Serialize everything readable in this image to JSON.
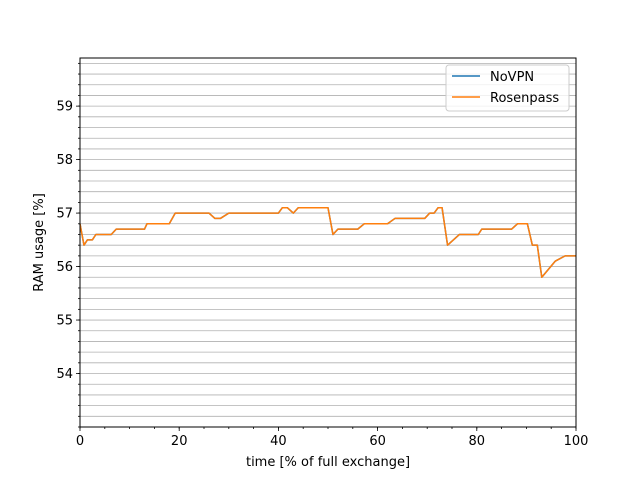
{
  "chart_data": {
    "type": "line",
    "xlabel": "time [% of full exchange]",
    "ylabel": "RAM usage [%]",
    "xlim": [
      0,
      100
    ],
    "ylim": [
      53.0,
      59.9
    ],
    "xticks": [
      0,
      20,
      40,
      60,
      80,
      100
    ],
    "xtick_labels": [
      "0",
      "20",
      "40",
      "60",
      "80",
      "100"
    ],
    "yticks": [
      54,
      55,
      56,
      57,
      58,
      59
    ],
    "ytick_labels": [
      "54",
      "55",
      "56",
      "57",
      "58",
      "59"
    ],
    "grid": "horizontal minor gridlines every 0.2",
    "legend_placement": "top-right",
    "series": [
      {
        "name": "NoVPN",
        "color": "#1f77b4",
        "x": [
          0,
          0.8,
          1.5,
          2.5,
          3.2,
          6.3,
          7.3,
          13,
          13.5,
          18,
          19.2,
          26,
          27.2,
          28.3,
          30,
          40,
          40.8,
          41.8,
          43,
          44,
          50,
          51,
          52,
          56,
          57.3,
          62,
          63.5,
          69.5,
          70.5,
          71.4,
          72.2,
          73,
          74.1,
          76.5,
          80.3,
          81,
          87,
          88.2,
          90.2,
          91.2,
          92.2,
          93.1,
          95.8,
          97.8,
          100
        ],
        "y": [
          56.8,
          56.4,
          56.5,
          56.5,
          56.6,
          56.6,
          56.7,
          56.7,
          56.8,
          56.8,
          57.0,
          57.0,
          56.9,
          56.9,
          57.0,
          57.0,
          57.1,
          57.1,
          57.0,
          57.1,
          57.1,
          56.6,
          56.7,
          56.7,
          56.8,
          56.8,
          56.9,
          56.9,
          57.0,
          57.0,
          57.1,
          57.1,
          56.4,
          56.6,
          56.6,
          56.7,
          56.7,
          56.8,
          56.8,
          56.4,
          56.4,
          55.8,
          56.1,
          56.2,
          56.2
        ]
      },
      {
        "name": "Rosenpass",
        "color": "#ff7f0e",
        "x": [
          0,
          0.8,
          1.5,
          2.5,
          3.2,
          6.3,
          7.3,
          13,
          13.5,
          18,
          19.2,
          26,
          27.2,
          28.3,
          30,
          40,
          40.8,
          41.8,
          43,
          44,
          50,
          51,
          52,
          56,
          57.3,
          62,
          63.5,
          69.5,
          70.5,
          71.4,
          72.2,
          73,
          74.1,
          76.5,
          80.3,
          81,
          87,
          88.2,
          90.2,
          91.2,
          92.2,
          93.1,
          95.8,
          97.8,
          100
        ],
        "y": [
          56.8,
          56.4,
          56.5,
          56.5,
          56.6,
          56.6,
          56.7,
          56.7,
          56.8,
          56.8,
          57.0,
          57.0,
          56.9,
          56.9,
          57.0,
          57.0,
          57.1,
          57.1,
          57.0,
          57.1,
          57.1,
          56.6,
          56.7,
          56.7,
          56.8,
          56.8,
          56.9,
          56.9,
          57.0,
          57.0,
          57.1,
          57.1,
          56.4,
          56.6,
          56.6,
          56.7,
          56.7,
          56.8,
          56.8,
          56.4,
          56.4,
          55.8,
          56.1,
          56.2,
          56.2
        ]
      }
    ]
  }
}
